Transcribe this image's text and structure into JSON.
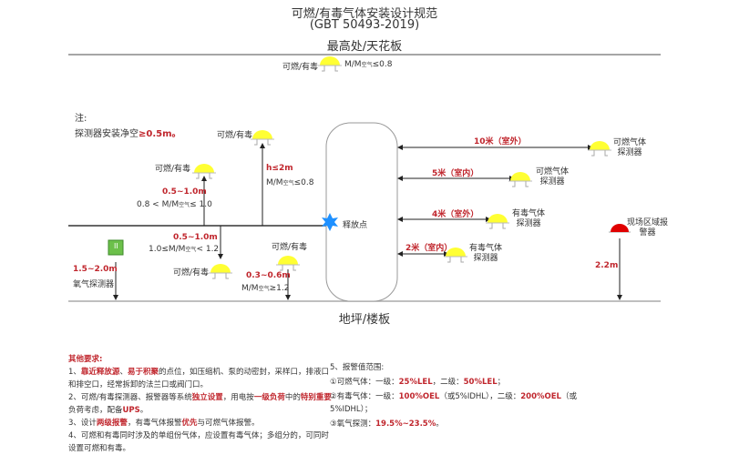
{
  "title": {
    "line1": "可燃/有毒气体安装设计规范",
    "line2": "(GBT 50493-2019)"
  },
  "ceiling_label": "最高处/天花板",
  "floor_label": "地坪/楼板",
  "release_point": "释放点",
  "note": {
    "label": "注:",
    "text": "探测器安装净空",
    "value": "≥0.5m。"
  },
  "detectors": {
    "ceiling": {
      "label": "可燃/有毒",
      "ratio": "M/M",
      "sub": "空气",
      "cond": "≤0.8"
    },
    "high": {
      "label": "可燃/有毒",
      "dist": "h≤2m",
      "ratio": "M/M",
      "sub": "空气",
      "cond": "≤0.8"
    },
    "mid_up": {
      "label": "可燃/有毒",
      "dist": "0.5~1.0m",
      "pre": "0.8 < M/M",
      "sub": "空气",
      "cond": "≤ 1.0"
    },
    "mid_down": {
      "label": "可燃/有毒",
      "dist": "0.5~1.0m",
      "pre": "1.0≤M/M",
      "sub": "空气",
      "cond": "< 1.2"
    },
    "low": {
      "label": "可燃/有毒",
      "dist": "0.3~0.6m",
      "ratio": "M/M",
      "sub": "空气",
      "cond": "≥1.2"
    },
    "oxygen": {
      "label": "氧气探测器",
      "dist": "1.5~2.0m",
      "icon": "II"
    }
  },
  "distances": [
    {
      "dist": "10米（室外）",
      "label1": "可燃气体",
      "label2": "探测器"
    },
    {
      "dist": "5米（室内）",
      "label1": "可燃气体",
      "label2": "探测器"
    },
    {
      "dist": "4米（室外）",
      "label1": "有毒气体",
      "label2": "探测器"
    },
    {
      "dist": "2米（室内）",
      "label1": "有毒气体",
      "label2": "探测器"
    }
  ],
  "alarm": {
    "label1": "现场区域报",
    "label2": "警器",
    "height": "2.2m"
  },
  "other_req": {
    "heading": "其他要求:",
    "items": [
      [
        "1、",
        "靠近释放源",
        "、",
        "易于积聚",
        "的点位，如压缩机、泵的动密封，采样口，排液口和排空口，经常拆卸的法兰口或阀门口。"
      ],
      [
        "2、可燃/有毒探测器、报警器等系统",
        "独立设置",
        "，用电按",
        "一级负荷",
        "中的",
        "特别重要",
        "负荷考虑，配备",
        "UPS",
        "。"
      ],
      [
        "3、设计",
        "两级报警",
        "，有毒气体报警",
        "优先",
        "与可燃气体报警。"
      ],
      [
        "4、可燃和有毒同时涉及的单组份气体，应设置有毒气体；多组分的，可同时设置可燃和有毒。"
      ]
    ]
  },
  "alarm_values": {
    "heading": "5、报警值范围:",
    "l1": [
      "①可燃气体：一级：",
      "25%LEL",
      "，二级：",
      "50%LEL",
      "；"
    ],
    "l2": [
      "②有毒气体：一级：",
      "100%OEL",
      "（或5%IDHL），二级：",
      "200%OEL",
      "（或5%IDHL）；"
    ],
    "l3": [
      "③氧气探测：",
      "19.5%~23.5%",
      "。"
    ]
  },
  "colors": {
    "detector": "#ffff33",
    "alarm": "#e00000",
    "accent": "#c0262d",
    "release": "#1e90ff",
    "oxygen": "#6cc04a"
  }
}
